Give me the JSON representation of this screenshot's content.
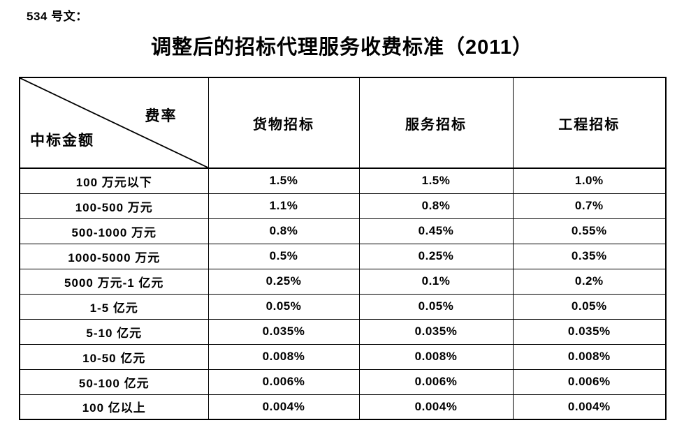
{
  "page": {
    "doc_label": "534 号文：",
    "title": "调整后的招标代理服务收费标准（2011）"
  },
  "table": {
    "corner": {
      "top_right": "费率",
      "bottom_left": "中标金额"
    },
    "columns": [
      "货物招标",
      "服务招标",
      "工程招标"
    ],
    "rows": [
      {
        "label": "100 万元以下",
        "values": [
          "1.5%",
          "1.5%",
          "1.0%"
        ]
      },
      {
        "label": "100-500 万元",
        "values": [
          "1.1%",
          "0.8%",
          "0.7%"
        ]
      },
      {
        "label": "500-1000 万元",
        "values": [
          "0.8%",
          "0.45%",
          "0.55%"
        ]
      },
      {
        "label": "1000-5000 万元",
        "values": [
          "0.5%",
          "0.25%",
          "0.35%"
        ]
      },
      {
        "label": "5000 万元-1 亿元",
        "values": [
          "0.25%",
          "0.1%",
          "0.2%"
        ]
      },
      {
        "label": "1-5 亿元",
        "values": [
          "0.05%",
          "0.05%",
          "0.05%"
        ]
      },
      {
        "label": "5-10 亿元",
        "values": [
          "0.035%",
          "0.035%",
          "0.035%"
        ]
      },
      {
        "label": "10-50 亿元",
        "values": [
          "0.008%",
          "0.008%",
          "0.008%"
        ]
      },
      {
        "label": "50-100 亿元",
        "values": [
          "0.006%",
          "0.006%",
          "0.006%"
        ]
      },
      {
        "label": "100 亿以上",
        "values": [
          "0.004%",
          "0.004%",
          "0.004%"
        ]
      }
    ],
    "colors": {
      "border": "#000000",
      "text": "#000000",
      "background": "#ffffff"
    }
  }
}
